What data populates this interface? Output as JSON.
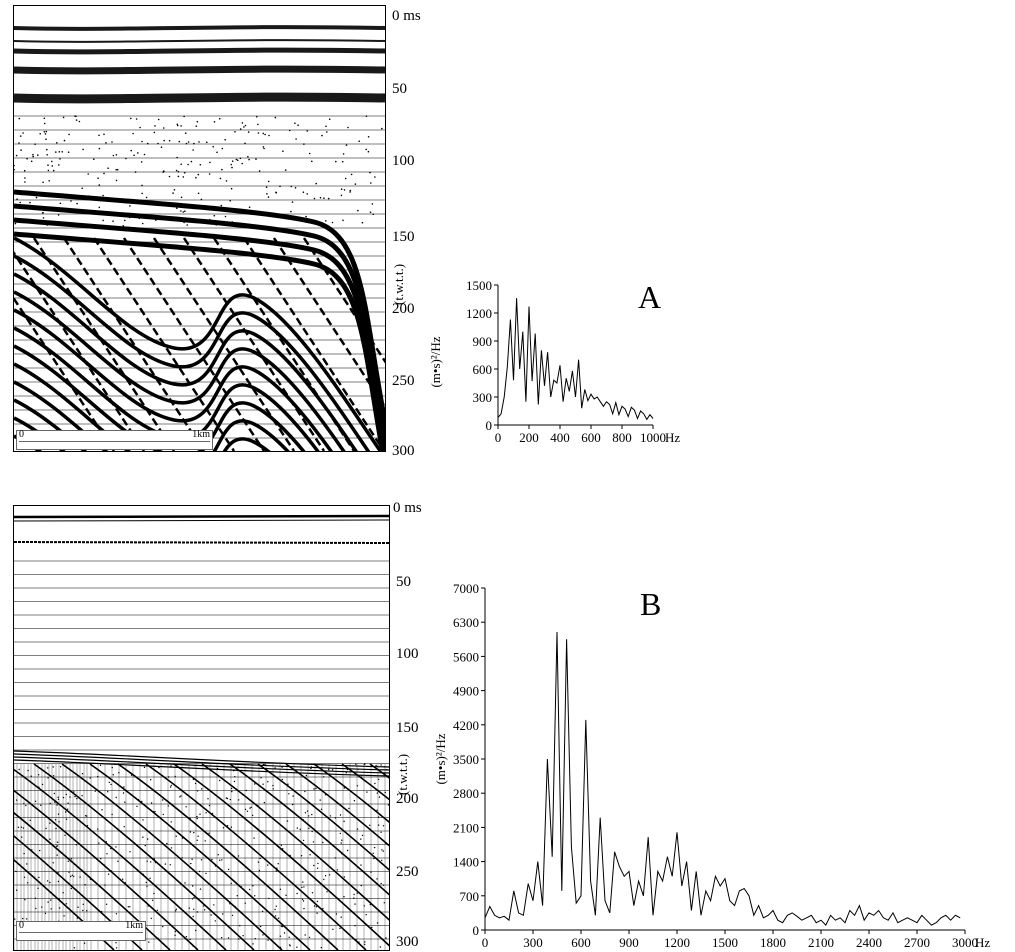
{
  "time_axis": {
    "unit_label": "0 ms",
    "ticks": [
      "50",
      "100",
      "150",
      "200",
      "250",
      "300"
    ],
    "label": "(t.w.t.t.)"
  },
  "scalebar": {
    "start": "0",
    "end": "1km"
  },
  "chart_data": [
    {
      "panel": "A",
      "type": "line",
      "ylabel": "(m•s)²/Hz",
      "xunit": "Hz",
      "xlim": [
        0,
        1000
      ],
      "ylim": [
        0,
        1500
      ],
      "xticks": [
        "0",
        "200",
        "400",
        "600",
        "800",
        "1000"
      ],
      "yticks": [
        "0",
        "300",
        "600",
        "900",
        "1200",
        "1500"
      ],
      "x": [
        0,
        20,
        40,
        60,
        80,
        100,
        120,
        140,
        160,
        180,
        200,
        220,
        240,
        260,
        280,
        300,
        320,
        340,
        360,
        380,
        400,
        420,
        440,
        460,
        480,
        500,
        520,
        540,
        560,
        580,
        600,
        620,
        640,
        660,
        680,
        700,
        720,
        740,
        760,
        780,
        800,
        820,
        840,
        860,
        880,
        900,
        920,
        940,
        960,
        980,
        1000
      ],
      "y": [
        80,
        120,
        300,
        620,
        1130,
        480,
        1360,
        600,
        1000,
        250,
        1270,
        470,
        980,
        220,
        800,
        420,
        780,
        300,
        480,
        450,
        640,
        250,
        500,
        360,
        580,
        300,
        700,
        180,
        380,
        260,
        330,
        280,
        300,
        250,
        200,
        250,
        220,
        120,
        240,
        110,
        200,
        170,
        90,
        190,
        160,
        70,
        150,
        120,
        60,
        110,
        70
      ]
    },
    {
      "panel": "B",
      "type": "line",
      "ylabel": "(m•s)²/Hz",
      "xunit": "Hz",
      "xlim": [
        0,
        3000
      ],
      "ylim": [
        0,
        7000
      ],
      "xticks": [
        "0",
        "300",
        "600",
        "900",
        "1200",
        "1500",
        "1800",
        "2100",
        "2400",
        "2700",
        "3000"
      ],
      "yticks": [
        "0",
        "700",
        "1400",
        "2100",
        "2800",
        "3500",
        "4200",
        "4900",
        "5600",
        "6300",
        "7000"
      ],
      "x": [
        0,
        30,
        60,
        90,
        120,
        150,
        180,
        210,
        240,
        270,
        300,
        330,
        360,
        390,
        420,
        450,
        480,
        510,
        540,
        570,
        600,
        630,
        660,
        690,
        720,
        750,
        780,
        810,
        840,
        870,
        900,
        930,
        960,
        990,
        1020,
        1050,
        1080,
        1110,
        1140,
        1170,
        1200,
        1230,
        1260,
        1290,
        1320,
        1350,
        1380,
        1410,
        1440,
        1470,
        1500,
        1530,
        1560,
        1590,
        1620,
        1650,
        1680,
        1710,
        1740,
        1770,
        1800,
        1830,
        1860,
        1890,
        1920,
        1950,
        1980,
        2010,
        2040,
        2070,
        2100,
        2130,
        2160,
        2190,
        2220,
        2250,
        2280,
        2310,
        2340,
        2370,
        2400,
        2430,
        2460,
        2490,
        2520,
        2550,
        2580,
        2610,
        2640,
        2670,
        2700,
        2730,
        2760,
        2790,
        2820,
        2850,
        2880,
        2910,
        2940,
        2970
      ],
      "y": [
        250,
        480,
        300,
        250,
        280,
        200,
        800,
        350,
        300,
        950,
        600,
        1400,
        500,
        3500,
        1500,
        6100,
        800,
        5950,
        1700,
        550,
        700,
        4300,
        1000,
        300,
        2300,
        600,
        350,
        1600,
        1300,
        1100,
        1200,
        500,
        1000,
        700,
        1900,
        300,
        1200,
        1000,
        1500,
        1100,
        2000,
        900,
        1400,
        400,
        1200,
        300,
        800,
        600,
        1100,
        900,
        1050,
        600,
        500,
        800,
        850,
        700,
        300,
        500,
        250,
        300,
        400,
        200,
        150,
        300,
        350,
        280,
        200,
        250,
        300,
        150,
        200,
        100,
        300,
        200,
        250,
        150,
        400,
        300,
        500,
        200,
        350,
        300,
        400,
        250,
        200,
        350,
        150,
        200,
        250,
        200,
        150,
        300,
        200,
        100,
        150,
        250,
        300,
        200,
        300,
        250
      ]
    }
  ]
}
